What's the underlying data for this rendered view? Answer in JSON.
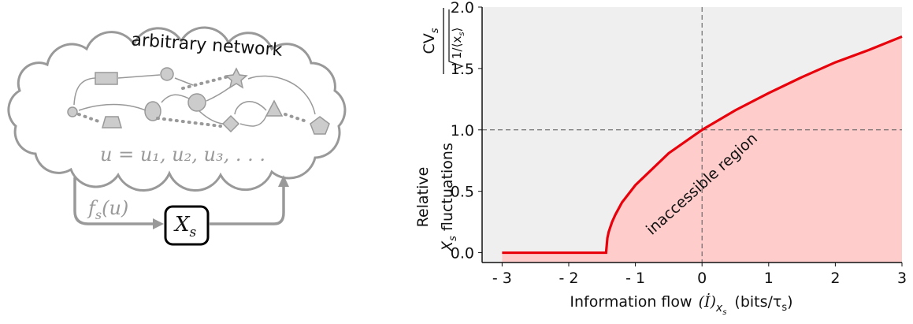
{
  "diagram": {
    "cloud_title": "arbitrary network",
    "network_variables": "u = u₁, u₂, u₃, . . .",
    "input_label": {
      "f": "f",
      "sub": "s",
      "arg": "(u)"
    },
    "node": {
      "main": "X",
      "sub": "s"
    }
  },
  "chart_data": {
    "type": "line",
    "x": [
      -3,
      -1.44,
      -1.42,
      -1.4,
      -1.35,
      -1.3,
      -1.2,
      -1.0,
      -0.5,
      0,
      0.5,
      1,
      1.5,
      2,
      2.5,
      3
    ],
    "values": [
      0,
      0,
      0.12,
      0.17,
      0.25,
      0.31,
      0.41,
      0.55,
      0.81,
      1,
      1.16,
      1.3,
      1.43,
      1.55,
      1.65,
      1.76
    ],
    "color": "#e8000b",
    "fill_below": true,
    "fill_color": "#ffcccc",
    "background": "#efefef",
    "xlim": [
      -3.3,
      3
    ],
    "ylim": [
      -0.08,
      2
    ],
    "xticks": [
      {
        "value": -3,
        "label": "- 3"
      },
      {
        "value": -2,
        "label": "- 2"
      },
      {
        "value": -1,
        "label": "- 1"
      },
      0,
      1,
      2,
      3
    ],
    "yticks": [
      {
        "value": 0,
        "label": "0.0"
      },
      {
        "value": 0.5,
        "label": "0.5"
      },
      {
        "value": 1,
        "label": "1.0"
      },
      {
        "value": 1.5,
        "label": "1.5"
      },
      {
        "value": 2,
        "label": "2.0"
      }
    ],
    "vlines": [
      0
    ],
    "hlines": [
      1
    ],
    "annotation": "inaccessible region",
    "xlabel": {
      "text": "Information flow",
      "sym": "(İ)",
      "sub1": "x",
      "sub2": "s",
      "unit": "(bits/τ",
      "unit_sub": "s",
      "unit_end": ")"
    },
    "ylabel": {
      "line1": "Relative",
      "line2_main": "X",
      "line2_sub": "s",
      "line2_rest": " fluctuations",
      "numerator": "CV",
      "numerator_sub": "s",
      "denominator": "1/⟨x",
      "denominator_sub": "s",
      "denominator_end": "⟩"
    }
  }
}
